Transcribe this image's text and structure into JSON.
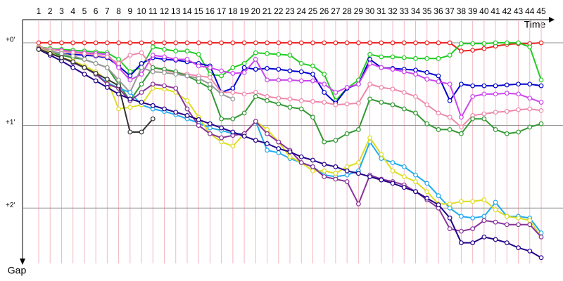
{
  "chart_data": {
    "type": "line",
    "x_label": "Time",
    "y_label": "Gap",
    "categories": [
      "1",
      "2",
      "3",
      "4",
      "5",
      "6",
      "7",
      "8",
      "9",
      "10",
      "11",
      "12",
      "13",
      "14",
      "15",
      "16",
      "17",
      "18",
      "19",
      "20",
      "21",
      "22",
      "23",
      "24",
      "25",
      "26",
      "27",
      "28",
      "29",
      "30",
      "31",
      "32",
      "33",
      "34",
      "35",
      "36",
      "37",
      "38",
      "39",
      "40",
      "41",
      "42",
      "43",
      "44",
      "45"
    ],
    "ylim": [
      -0.28,
      2.67
    ],
    "inverted": true,
    "yticks": [
      {
        "value": 0,
        "label": "+0'"
      },
      {
        "value": 1,
        "label": "+1'"
      },
      {
        "value": 2,
        "label": "+2'"
      }
    ],
    "grid": true,
    "series": [
      {
        "color": "#ee2222",
        "values": [
          0,
          0,
          0,
          0,
          0,
          0,
          0,
          0,
          0,
          0,
          0,
          0,
          0,
          0,
          0,
          0,
          0,
          0,
          0,
          0,
          0,
          0,
          0,
          0,
          0,
          0,
          0,
          0,
          0,
          0,
          0,
          0,
          0,
          0,
          0,
          0,
          0,
          0.1,
          0.09,
          0.07,
          0.04,
          0.02,
          0.01,
          0.01,
          0
        ]
      },
      {
        "color": "#22cc22",
        "values": [
          0.05,
          0.07,
          0.08,
          0.09,
          0.1,
          0.11,
          0.12,
          0.2,
          0.35,
          0.3,
          0.05,
          0.08,
          0.1,
          0.1,
          0.14,
          0.38,
          0.4,
          0.3,
          0.25,
          0.12,
          0.13,
          0.14,
          0.15,
          0.25,
          0.28,
          0.38,
          0.7,
          0.55,
          0.45,
          0.14,
          0.17,
          0.17,
          0.18,
          0.19,
          0.19,
          0.19,
          0.15,
          0.01,
          0.01,
          0.01,
          0,
          0,
          0,
          0.05,
          0.45
        ]
      },
      {
        "color": "#0000cc",
        "values": [
          0.08,
          0.1,
          0.13,
          0.14,
          0.15,
          0.16,
          0.18,
          0.28,
          0.4,
          0.25,
          0.18,
          0.2,
          0.21,
          0.23,
          0.25,
          0.28,
          0.6,
          0.55,
          0.3,
          0.32,
          0.31,
          0.32,
          0.34,
          0.35,
          0.38,
          0.6,
          0.73,
          0.55,
          0.5,
          0.2,
          0.3,
          0.31,
          0.32,
          0.33,
          0.36,
          0.4,
          0.7,
          0.5,
          0.52,
          0.52,
          0.52,
          0.51,
          0.5,
          0.5,
          0.52
        ]
      },
      {
        "color": "#cc44ee",
        "values": [
          0.05,
          0.08,
          0.09,
          0.11,
          0.12,
          0.13,
          0.14,
          0.3,
          0.45,
          0.38,
          0.15,
          0.17,
          0.2,
          0.2,
          0.28,
          0.3,
          0.34,
          0.37,
          0.36,
          0.2,
          0.45,
          0.45,
          0.45,
          0.46,
          0.46,
          0.5,
          0.6,
          0.54,
          0.5,
          0.25,
          0.3,
          0.32,
          0.35,
          0.38,
          0.44,
          0.47,
          0.5,
          0.9,
          0.65,
          0.62,
          0.62,
          0.61,
          0.62,
          0.67,
          0.72
        ]
      },
      {
        "color": "#ee88aa",
        "values": [
          0.05,
          0.08,
          0.1,
          0.12,
          0.13,
          0.15,
          0.17,
          0.25,
          0.15,
          0.12,
          0.3,
          0.33,
          0.36,
          0.38,
          0.4,
          0.42,
          0.6,
          0.6,
          0.62,
          0.6,
          0.65,
          0.67,
          0.68,
          0.7,
          0.71,
          0.72,
          0.75,
          0.74,
          0.73,
          0.5,
          0.54,
          0.56,
          0.6,
          0.65,
          0.75,
          0.85,
          0.9,
          1.02,
          0.88,
          0.86,
          0.84,
          0.83,
          0.81,
          0.8,
          0.82
        ]
      },
      {
        "color": "#339933",
        "values": [
          0.08,
          0.12,
          0.15,
          0.18,
          0.2,
          0.25,
          0.3,
          0.5,
          0.7,
          0.5,
          0.3,
          0.32,
          0.35,
          0.4,
          0.47,
          0.55,
          0.92,
          0.92,
          0.85,
          0.65,
          0.7,
          0.74,
          0.78,
          0.8,
          0.9,
          1.2,
          1.18,
          1.1,
          1.05,
          0.68,
          0.72,
          0.75,
          0.8,
          0.85,
          0.98,
          1.05,
          1.05,
          1.1,
          0.92,
          0.92,
          1.05,
          1.1,
          1.08,
          1.02,
          0.98
        ]
      },
      {
        "color": "#999999",
        "values": [
          0.06,
          0.1,
          0.13,
          0.16,
          0.2,
          0.25,
          0.3,
          0.45,
          0.6,
          0.3,
          0.35,
          0.36,
          0.38,
          0.4,
          0.43,
          0.5,
          0.62,
          0.68,
          null,
          null,
          null,
          null,
          null,
          null,
          null,
          null,
          null,
          null,
          null,
          null,
          null,
          null,
          null,
          null,
          null,
          null,
          null,
          null,
          null,
          null,
          null,
          null,
          null,
          null,
          null
        ]
      },
      {
        "color": "#22aaee",
        "values": [
          0.06,
          0.12,
          0.18,
          0.24,
          0.3,
          0.38,
          0.48,
          0.55,
          0.6,
          0.75,
          0.8,
          0.83,
          0.87,
          0.92,
          0.97,
          1.03,
          1.06,
          1.1,
          1.1,
          0.95,
          1.3,
          1.33,
          1.4,
          1.45,
          1.5,
          1.6,
          1.62,
          1.6,
          1.55,
          1.2,
          1.4,
          1.45,
          1.5,
          1.6,
          1.7,
          1.85,
          2.0,
          2.1,
          2.12,
          2.1,
          1.93,
          2.1,
          2.1,
          2.12,
          2.3
        ]
      },
      {
        "color": "#dddd22",
        "values": [
          0.06,
          0.12,
          0.18,
          0.22,
          0.28,
          0.35,
          0.45,
          0.8,
          0.78,
          0.75,
          0.55,
          0.56,
          0.6,
          0.7,
          0.9,
          1.1,
          1.2,
          1.25,
          1.1,
          0.95,
          1.05,
          1.2,
          1.38,
          1.45,
          1.55,
          1.55,
          1.58,
          1.5,
          1.45,
          1.15,
          1.35,
          1.55,
          1.62,
          1.68,
          1.8,
          1.95,
          1.95,
          1.92,
          1.92,
          1.9,
          2.02,
          2.1,
          2.12,
          2.15,
          2.35
        ]
      },
      {
        "color": "#883399",
        "values": [
          0.07,
          0.13,
          0.18,
          0.24,
          0.3,
          0.38,
          0.5,
          0.55,
          0.7,
          0.6,
          0.5,
          0.52,
          0.55,
          0.8,
          1.0,
          1.1,
          1.15,
          1.12,
          1.1,
          0.95,
          1.1,
          1.2,
          1.3,
          1.45,
          1.5,
          1.62,
          1.65,
          1.68,
          1.95,
          1.6,
          1.65,
          1.68,
          1.72,
          1.8,
          1.9,
          2.0,
          2.25,
          2.28,
          2.25,
          2.15,
          2.17,
          2.2,
          2.2,
          2.2,
          2.35
        ]
      },
      {
        "color": "#220088",
        "values": [
          0.08,
          0.15,
          0.22,
          0.3,
          0.38,
          0.46,
          0.54,
          0.62,
          0.68,
          0.72,
          0.76,
          0.8,
          0.84,
          0.88,
          0.93,
          0.98,
          1.03,
          1.08,
          1.13,
          1.18,
          1.22,
          1.28,
          1.32,
          1.38,
          1.42,
          1.47,
          1.5,
          1.55,
          1.58,
          1.62,
          1.66,
          1.7,
          1.75,
          1.8,
          1.88,
          1.96,
          2.12,
          2.42,
          2.42,
          2.35,
          2.38,
          2.42,
          2.48,
          2.52,
          2.6
        ]
      },
      {
        "color": "#333333",
        "values": [
          0.08,
          0.13,
          0.18,
          0.23,
          0.3,
          0.37,
          0.44,
          0.52,
          1.08,
          1.08,
          0.92,
          null,
          null,
          null,
          null,
          null,
          null,
          null,
          null,
          null,
          null,
          null,
          null,
          null,
          null,
          null,
          null,
          null,
          null,
          null,
          null,
          null,
          null,
          null,
          null,
          null,
          null,
          null,
          null,
          null,
          null,
          null,
          null,
          null,
          null
        ]
      }
    ]
  }
}
